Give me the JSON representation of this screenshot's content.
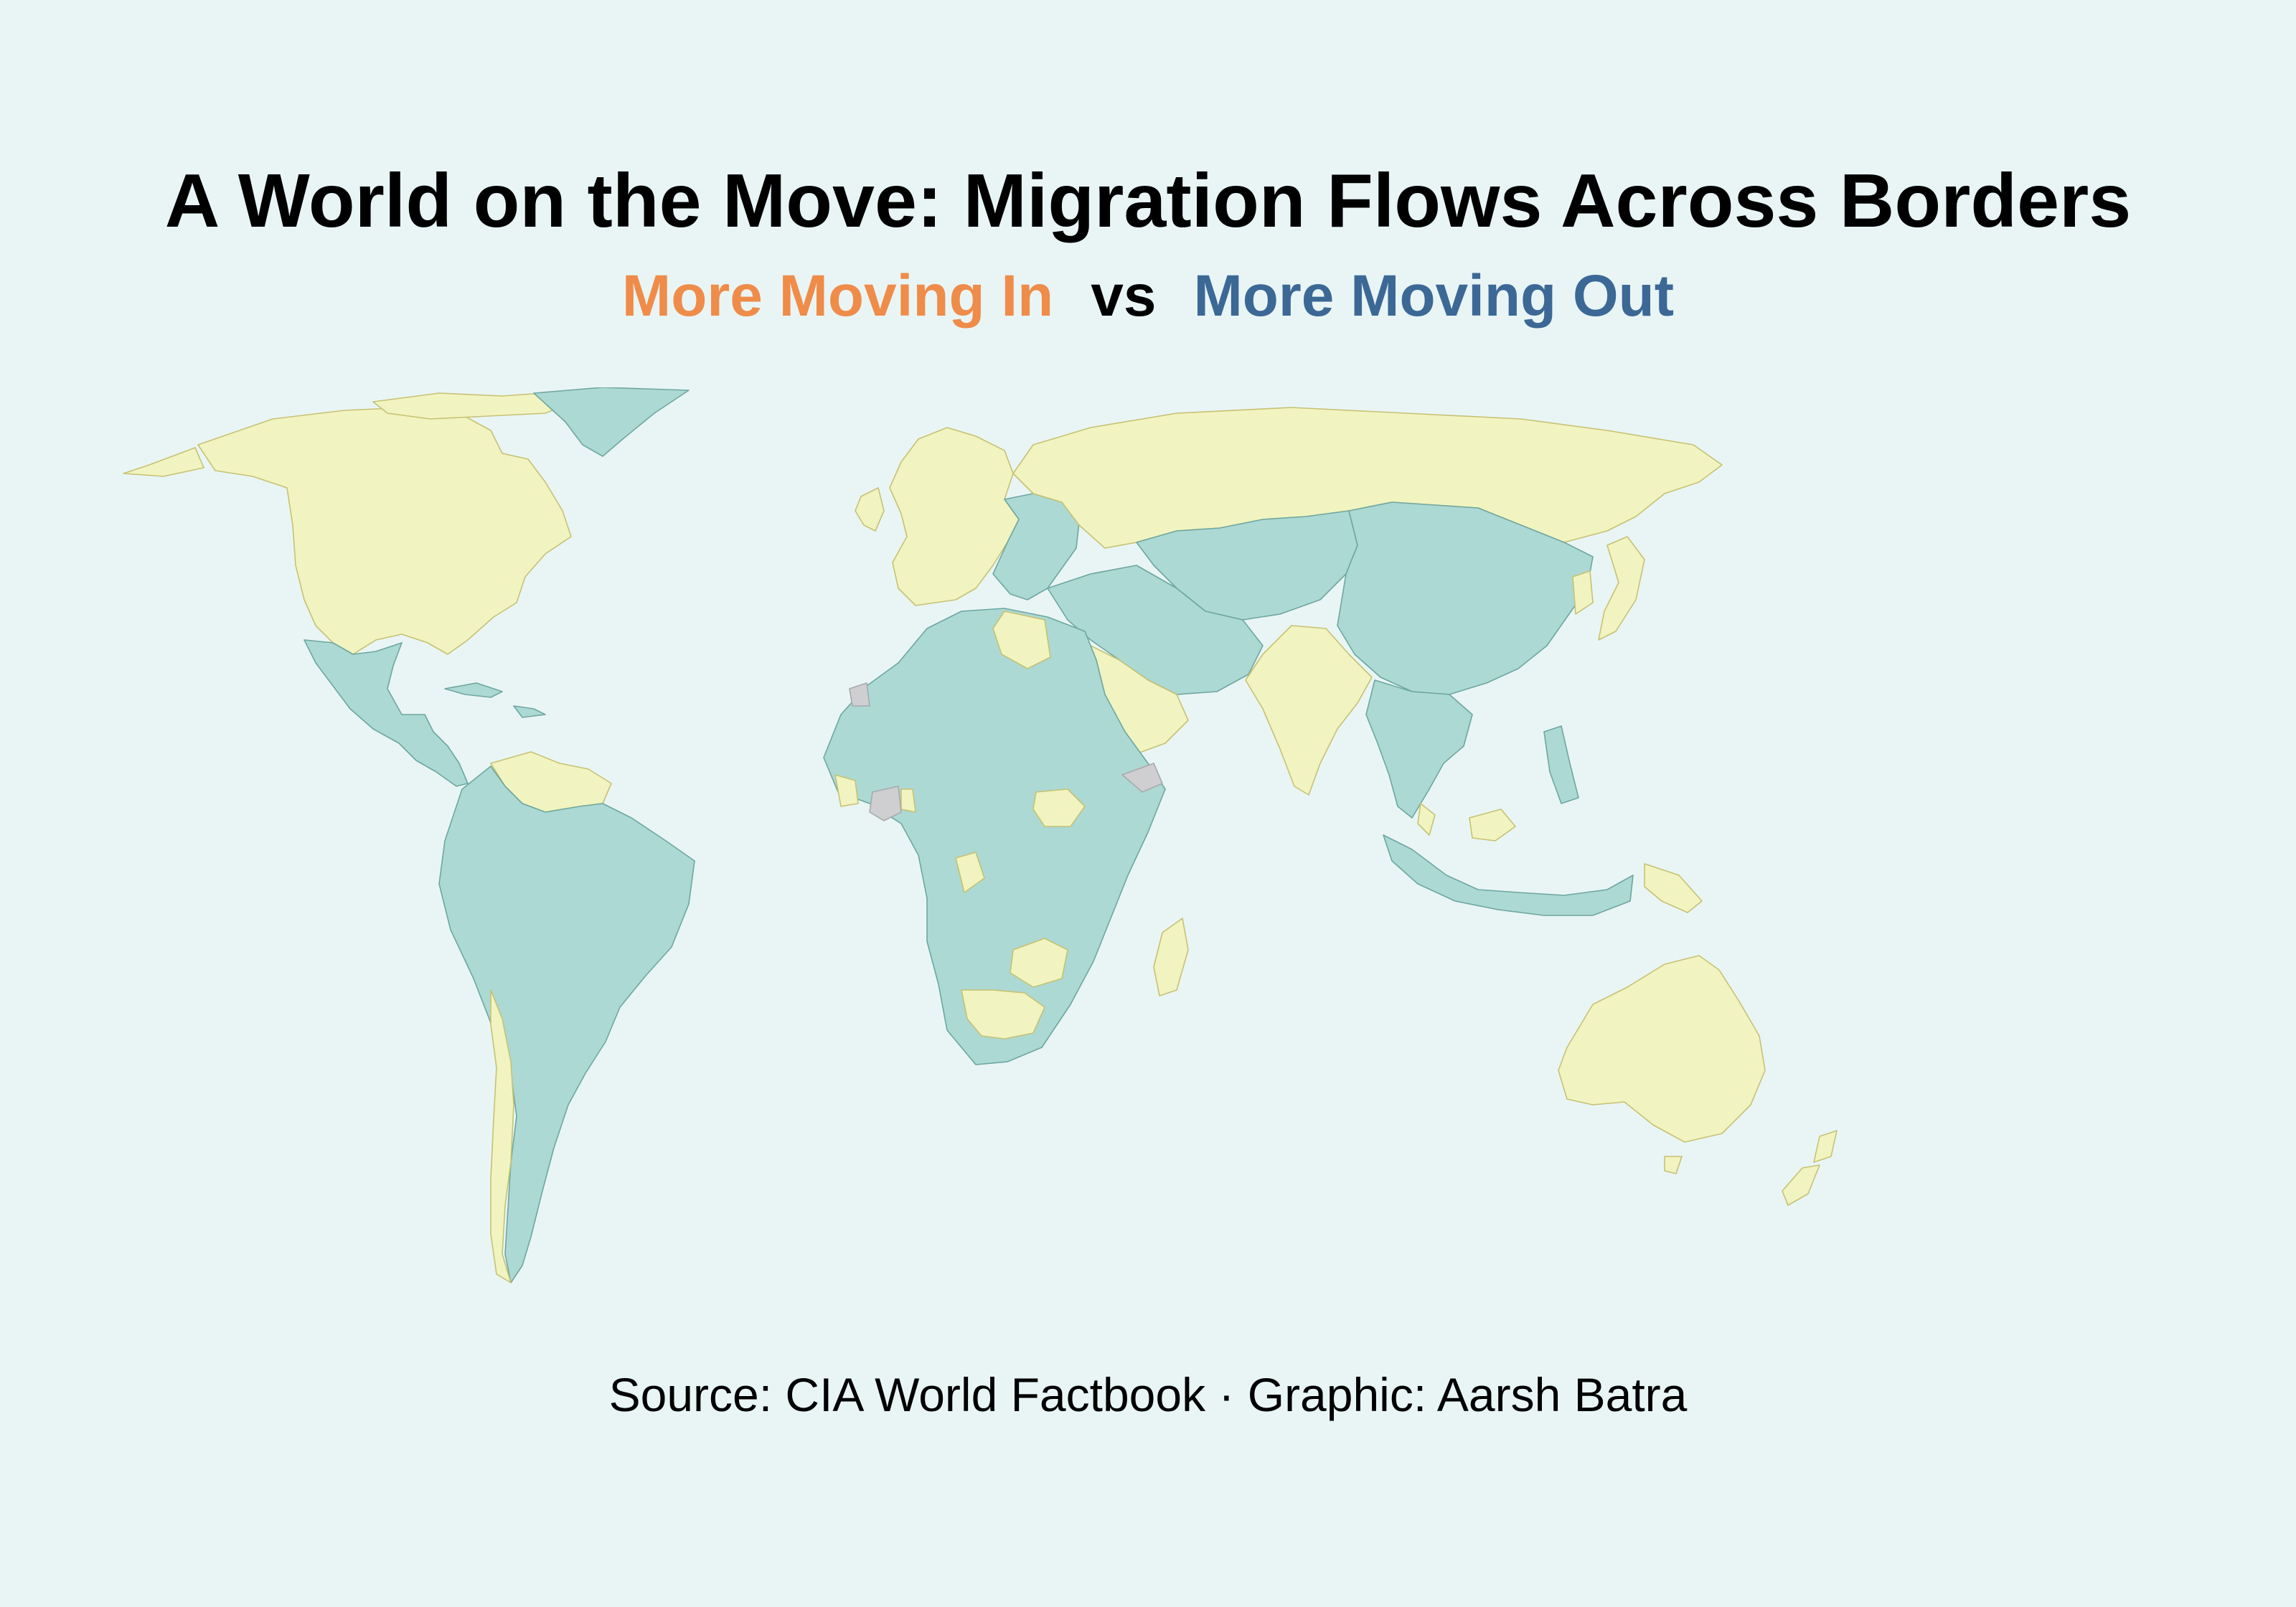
{
  "title": "A World on the Move: Migration Flows Across Borders",
  "subtitle": {
    "moving_in": "More Moving In",
    "vs": "vs",
    "moving_out": "More Moving Out"
  },
  "source": "Source: CIA World Factbook · Graphic: Aarsh Batra",
  "colors": {
    "background": "#e9f5f5",
    "moving_in_text": "#ef8c4a",
    "moving_out_text": "#3c6896",
    "moving_in_fill": "#f1f4c0",
    "moving_out_fill": "#acd9d4",
    "no_data_fill": "#cfcfd2",
    "moving_in_border": "#c7c172",
    "moving_out_border": "#6fa6a0"
  },
  "map": {
    "type": "choropleth",
    "projection": "miller",
    "regions": [
      {
        "name": "North America (Canada, USA)",
        "category": "moving_in"
      },
      {
        "name": "Greenland",
        "category": "moving_out"
      },
      {
        "name": "Mexico and Central America",
        "category": "moving_out"
      },
      {
        "name": "Caribbean",
        "category": "moving_out"
      },
      {
        "name": "Venezuela, Guyana, Suriname",
        "category": "moving_in"
      },
      {
        "name": "South America",
        "category": "moving_out"
      },
      {
        "name": "Chile",
        "category": "moving_in"
      },
      {
        "name": "Western and Northern Europe",
        "category": "moving_in"
      },
      {
        "name": "Eastern Europe and Balkans",
        "category": "moving_out"
      },
      {
        "name": "Russia",
        "category": "moving_in"
      },
      {
        "name": "Central Asia",
        "category": "moving_out"
      },
      {
        "name": "China and Mongolia",
        "category": "moving_out"
      },
      {
        "name": "Japan and Korea",
        "category": "moving_in"
      },
      {
        "name": "Middle East and Iran",
        "category": "moving_out"
      },
      {
        "name": "Arabian Peninsula",
        "category": "moving_in"
      },
      {
        "name": "India",
        "category": "moving_in"
      },
      {
        "name": "Southeast Asia",
        "category": "moving_out"
      },
      {
        "name": "Malaysia",
        "category": "moving_in"
      },
      {
        "name": "Africa",
        "category": "moving_out"
      },
      {
        "name": "Libya",
        "category": "moving_in"
      },
      {
        "name": "South Sudan",
        "category": "moving_in"
      },
      {
        "name": "Gabon",
        "category": "moving_in"
      },
      {
        "name": "Zambia",
        "category": "moving_in"
      },
      {
        "name": "Namibia and Botswana",
        "category": "moving_in"
      },
      {
        "name": "Madagascar",
        "category": "moving_in"
      },
      {
        "name": "Côte d'Ivoire",
        "category": "no_data"
      },
      {
        "name": "Somalia",
        "category": "no_data"
      },
      {
        "name": "Western Sahara",
        "category": "no_data"
      },
      {
        "name": "Australia and New Zealand",
        "category": "moving_in"
      },
      {
        "name": "Papua New Guinea",
        "category": "moving_in"
      }
    ]
  }
}
